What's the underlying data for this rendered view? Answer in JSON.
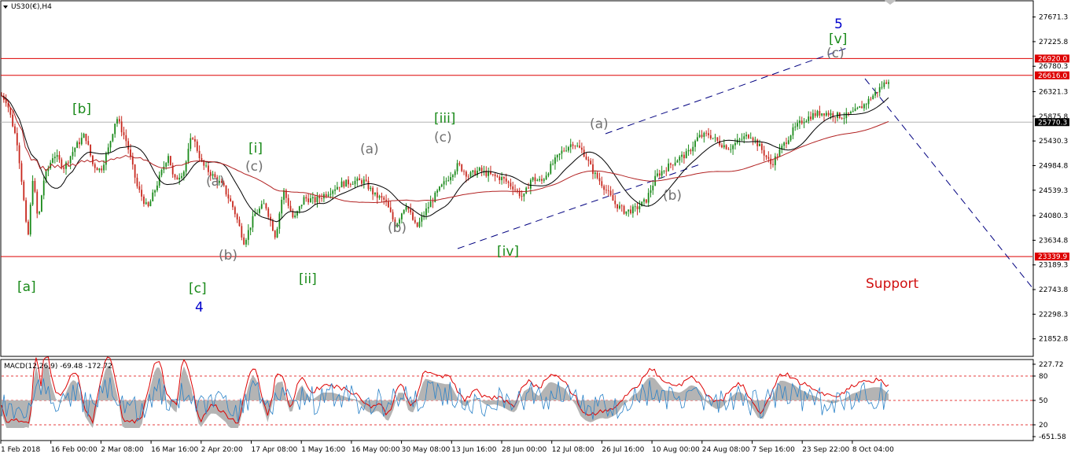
{
  "header": {
    "symbol_label": "US30(€),H4",
    "macd_label": "MACD(12,26,9) -69.48 -172.72"
  },
  "colors": {
    "price_up": "#1a8a1a",
    "price_down": "#c8281e",
    "ma_short": "#000000",
    "ma_long": "#b22222",
    "hline": "#dd0000",
    "channel": "#000080",
    "green_label": "#1a8a1a",
    "gray_label": "#707070",
    "blue_label": "#0000cc",
    "support_label": "#d01010",
    "macd_hist": "#b4b4b4",
    "macd_signal": "#dd0000",
    "macd_line": "#2a82c8"
  },
  "chart_data": [
    {
      "type": "line",
      "title": "US30(€),H4",
      "ylim": [
        21550,
        27950
      ],
      "y_ticks": [
        "27671.3",
        "27225.8",
        "26780.3",
        "26321.3",
        "25875.8",
        "25430.3",
        "24984.8",
        "24539.3",
        "24080.3",
        "23634.8",
        "23189.3",
        "22743.8",
        "22298.3",
        "21852.8"
      ],
      "x_ticks": [
        "1 Feb 2018",
        "16 Feb 00:00",
        "2 Mar 08:00",
        "16 Mar 16:00",
        "2 Apr 20:00",
        "17 Apr 08:00",
        "1 May 16:00",
        "16 May 00:00",
        "30 May 08:00",
        "13 Jun 16:00",
        "28 Jun 00:00",
        "12 Jul 08:00",
        "26 Jul 16:00",
        "10 Aug 00:00",
        "24 Aug 08:00",
        "7 Sep 16:00",
        "23 Sep 22:00",
        "8 Oct 04:00"
      ],
      "x_range": [
        0,
        34
      ],
      "series": [
        {
          "values": [
            [
              0,
              26250
            ],
            [
              0.2,
              26150
            ],
            [
              0.6,
              25400
            ],
            [
              0.8,
              24600
            ],
            [
              1.0,
              23600
            ],
            [
              1.2,
              24800
            ],
            [
              1.4,
              23950
            ],
            [
              1.6,
              24700
            ],
            [
              2.0,
              25200
            ],
            [
              2.4,
              24950
            ],
            [
              2.8,
              25300
            ],
            [
              3.2,
              25550
            ],
            [
              3.5,
              25000
            ],
            [
              3.8,
              24900
            ],
            [
              4.1,
              25300
            ],
            [
              4.4,
              25870
            ],
            [
              4.8,
              25400
            ],
            [
              5.2,
              24600
            ],
            [
              5.6,
              24200
            ],
            [
              6.0,
              24700
            ],
            [
              6.4,
              25200
            ],
            [
              6.6,
              24700
            ],
            [
              7.0,
              24900
            ],
            [
              7.3,
              25550
            ],
            [
              7.7,
              25000
            ],
            [
              8.1,
              24800
            ],
            [
              8.5,
              24600
            ],
            [
              8.9,
              24200
            ],
            [
              9.3,
              23600
            ],
            [
              9.7,
              24100
            ],
            [
              10.1,
              24300
            ],
            [
              10.5,
              23700
            ],
            [
              10.8,
              24550
            ],
            [
              11.2,
              24000
            ],
            [
              11.6,
              24400
            ],
            [
              12.0,
              24350
            ],
            [
              12.5,
              24500
            ],
            [
              13.0,
              24650
            ],
            [
              13.5,
              24700
            ],
            [
              13.9,
              24700
            ],
            [
              14.3,
              24450
            ],
            [
              14.7,
              24350
            ],
            [
              15.1,
              23900
            ],
            [
              15.5,
              24300
            ],
            [
              15.9,
              23850
            ],
            [
              16.3,
              24200
            ],
            [
              16.7,
              24500
            ],
            [
              17.1,
              24750
            ],
            [
              17.5,
              25000
            ],
            [
              17.9,
              24800
            ],
            [
              18.3,
              24900
            ],
            [
              18.8,
              24800
            ],
            [
              19.2,
              24750
            ],
            [
              19.6,
              24600
            ],
            [
              20.0,
              24400
            ],
            [
              20.3,
              24750
            ],
            [
              20.7,
              24700
            ],
            [
              21.1,
              25000
            ],
            [
              21.5,
              25250
            ],
            [
              21.9,
              25400
            ],
            [
              22.3,
              25230
            ],
            [
              22.7,
              24850
            ],
            [
              23.1,
              24600
            ],
            [
              23.5,
              24300
            ],
            [
              23.9,
              24150
            ],
            [
              24.3,
              24200
            ],
            [
              24.7,
              24350
            ],
            [
              25.1,
              24800
            ],
            [
              25.5,
              24950
            ],
            [
              25.9,
              25100
            ],
            [
              26.3,
              25200
            ],
            [
              26.7,
              25500
            ],
            [
              27.1,
              25550
            ],
            [
              27.5,
              25400
            ],
            [
              27.9,
              25300
            ],
            [
              28.3,
              25450
            ],
            [
              28.7,
              25550
            ],
            [
              29.1,
              25300
            ],
            [
              29.5,
              25000
            ],
            [
              29.9,
              25300
            ],
            [
              30.3,
              25600
            ],
            [
              30.7,
              25800
            ],
            [
              31.1,
              25900
            ],
            [
              31.5,
              25950
            ],
            [
              31.9,
              25900
            ],
            [
              32.3,
              25870
            ],
            [
              32.7,
              25950
            ],
            [
              33.1,
              26100
            ],
            [
              33.5,
              26300
            ],
            [
              33.9,
              26500
            ],
            [
              34,
              26550
            ]
          ],
          "name": "",
          "color": "#000000"
        }
      ]
    }
  ],
  "price_axis_markers": [
    {
      "label": "26920.0",
      "value": 26920,
      "color": "#dd0000"
    },
    {
      "label": "26616.0",
      "value": 26616,
      "color": "#dd0000"
    },
    {
      "label": "25770.3",
      "value": 25770.3,
      "color": "#000000"
    },
    {
      "label": "23339.9",
      "value": 23339.9,
      "color": "#dd0000"
    }
  ],
  "horizontal_lines": [
    {
      "value": 26920,
      "color": "#dd0000"
    },
    {
      "value": 26616,
      "color": "#dd0000"
    },
    {
      "value": 25770.3,
      "color": "#b4b4b4"
    },
    {
      "value": 23339.9,
      "color": "#dd0000"
    }
  ],
  "wave_labels": [
    {
      "text": "[a]",
      "color": "green"
    },
    {
      "text": "[b]",
      "color": "green"
    },
    {
      "text": "[c]",
      "color": "green"
    },
    {
      "text": "4",
      "color": "blue"
    },
    {
      "text": "(a)",
      "color": "gray"
    },
    {
      "text": "(b)",
      "color": "gray"
    },
    {
      "text": "[i]",
      "color": "green"
    },
    {
      "text": "(c)",
      "color": "gray"
    },
    {
      "text": "[ii]",
      "color": "green"
    },
    {
      "text": "(a)",
      "color": "gray"
    },
    {
      "text": "(b)",
      "color": "gray"
    },
    {
      "text": "[iii]",
      "color": "green"
    },
    {
      "text": "(c)",
      "color": "gray"
    },
    {
      "text": "[iv]",
      "color": "green"
    },
    {
      "text": "(a)",
      "color": "gray"
    },
    {
      "text": "(b)",
      "color": "gray"
    },
    {
      "text": "5",
      "color": "blue"
    },
    {
      "text": "[v]",
      "color": "green"
    },
    {
      "text": "(c)",
      "color": "gray"
    },
    {
      "text": "Support",
      "color": "red"
    }
  ],
  "macd": {
    "y_ticks": [
      "227.72",
      "80",
      "50",
      "20",
      "-651.58"
    ]
  }
}
